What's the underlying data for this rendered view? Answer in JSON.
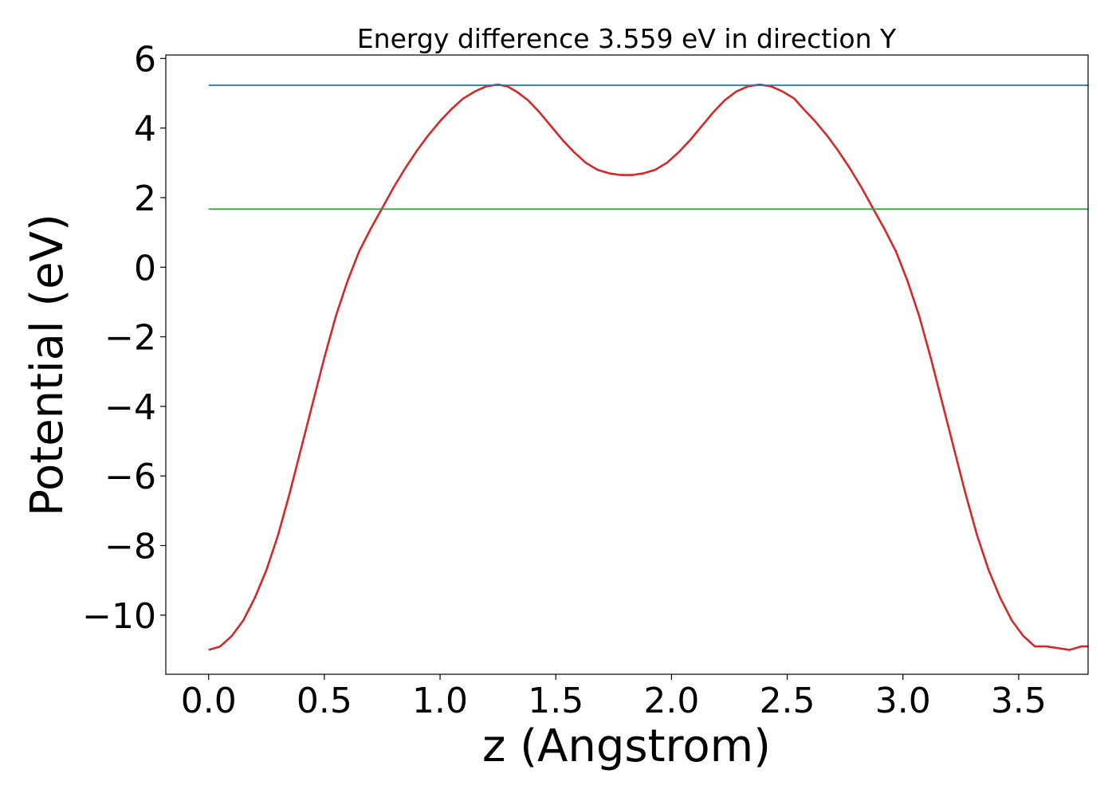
{
  "chart_data": {
    "type": "line",
    "title": "Energy difference 3.559 eV in direction Y",
    "xlabel": "z (Angstrom)",
    "ylabel": "Potential (eV)",
    "xlim": [
      -0.185,
      3.8
    ],
    "ylim": [
      -11.7,
      6.1
    ],
    "x_ticks": [
      0.0,
      0.5,
      1.0,
      1.5,
      2.0,
      2.5,
      3.0,
      3.5
    ],
    "x_tick_labels": [
      "0.0",
      "0.5",
      "1.0",
      "1.5",
      "2.0",
      "2.5",
      "3.0",
      "3.5"
    ],
    "y_ticks": [
      6,
      4,
      2,
      0,
      -2,
      -4,
      -6,
      -8,
      -10
    ],
    "y_tick_labels": [
      "6",
      "4",
      "2",
      "0",
      "−2",
      "−4",
      "−6",
      "−8",
      "−10"
    ],
    "grid": false,
    "legend": "none",
    "series": [
      {
        "color": "#d62728",
        "x": [
          0.0,
          0.05,
          0.1,
          0.15,
          0.2,
          0.25,
          0.3,
          0.35,
          0.4,
          0.45,
          0.5,
          0.55,
          0.6,
          0.65,
          0.7,
          0.75,
          0.8,
          0.85,
          0.9,
          0.95,
          1.0,
          1.05,
          1.1,
          1.15,
          1.2,
          1.25,
          1.29,
          1.33,
          1.38,
          1.43,
          1.48,
          1.53,
          1.58,
          1.63,
          1.68,
          1.73,
          1.78,
          1.83,
          1.88,
          1.93,
          1.98,
          2.03,
          2.08,
          2.13,
          2.18,
          2.23,
          2.28,
          2.33,
          2.38,
          2.43,
          2.48,
          2.53,
          2.57,
          2.62,
          2.67,
          2.72,
          2.77,
          2.82,
          2.87,
          2.92,
          2.97,
          3.02,
          3.07,
          3.12,
          3.17,
          3.22,
          3.27,
          3.32,
          3.37,
          3.42,
          3.47,
          3.52,
          3.57,
          3.62,
          3.67,
          3.72,
          3.77,
          3.8
        ],
        "y": [
          -11.0,
          -10.9,
          -10.6,
          -10.15,
          -9.5,
          -8.7,
          -7.7,
          -6.5,
          -5.2,
          -3.9,
          -2.6,
          -1.4,
          -0.4,
          0.45,
          1.1,
          1.7,
          2.3,
          2.85,
          3.35,
          3.8,
          4.2,
          4.55,
          4.85,
          5.05,
          5.2,
          5.25,
          5.2,
          5.05,
          4.8,
          4.45,
          4.05,
          3.65,
          3.3,
          3.0,
          2.8,
          2.7,
          2.65,
          2.65,
          2.7,
          2.8,
          3.0,
          3.3,
          3.65,
          4.05,
          4.45,
          4.8,
          5.05,
          5.2,
          5.25,
          5.2,
          5.05,
          4.85,
          4.55,
          4.2,
          3.8,
          3.35,
          2.85,
          2.3,
          1.7,
          1.1,
          0.45,
          -0.4,
          -1.4,
          -2.6,
          -3.9,
          -5.2,
          -6.5,
          -7.7,
          -8.7,
          -9.5,
          -10.15,
          -10.6,
          -10.9,
          -10.9,
          -10.95,
          -11.0,
          -10.9,
          -10.9
        ]
      },
      {
        "color": "#1f77b4",
        "x": [
          0.0,
          3.8
        ],
        "y": [
          5.23,
          5.23
        ]
      },
      {
        "color": "#2ca02c",
        "x": [
          0.0,
          3.8
        ],
        "y": [
          1.67,
          1.67
        ]
      }
    ]
  }
}
